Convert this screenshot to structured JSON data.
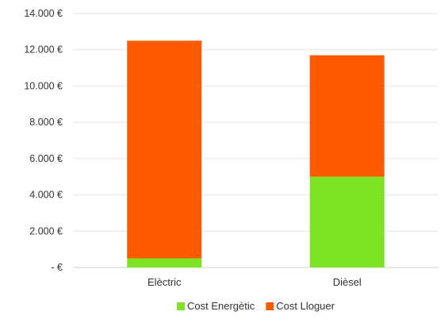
{
  "chart_data": {
    "type": "bar",
    "stacked": true,
    "categories": [
      "Elèctric",
      "Dièsel"
    ],
    "series": [
      {
        "name": "Cost Energètic",
        "values": [
          500,
          5000
        ],
        "color": "#7ee322"
      },
      {
        "name": "Cost Lloguer",
        "values": [
          12000,
          6700
        ],
        "color": "#fe5a00"
      }
    ],
    "ylim": [
      0,
      14000
    ],
    "yticks": [
      0,
      2000,
      4000,
      6000,
      8000,
      10000,
      12000,
      14000
    ],
    "ytick_labels": [
      "-  €",
      "2.000 €",
      "4.000 €",
      "6.000 €",
      "8.000 €",
      "10.000 €",
      "12.000 €",
      "14.000 €"
    ],
    "grid": true,
    "legend_position": "bottom",
    "title": "",
    "xlabel": "",
    "ylabel": ""
  }
}
